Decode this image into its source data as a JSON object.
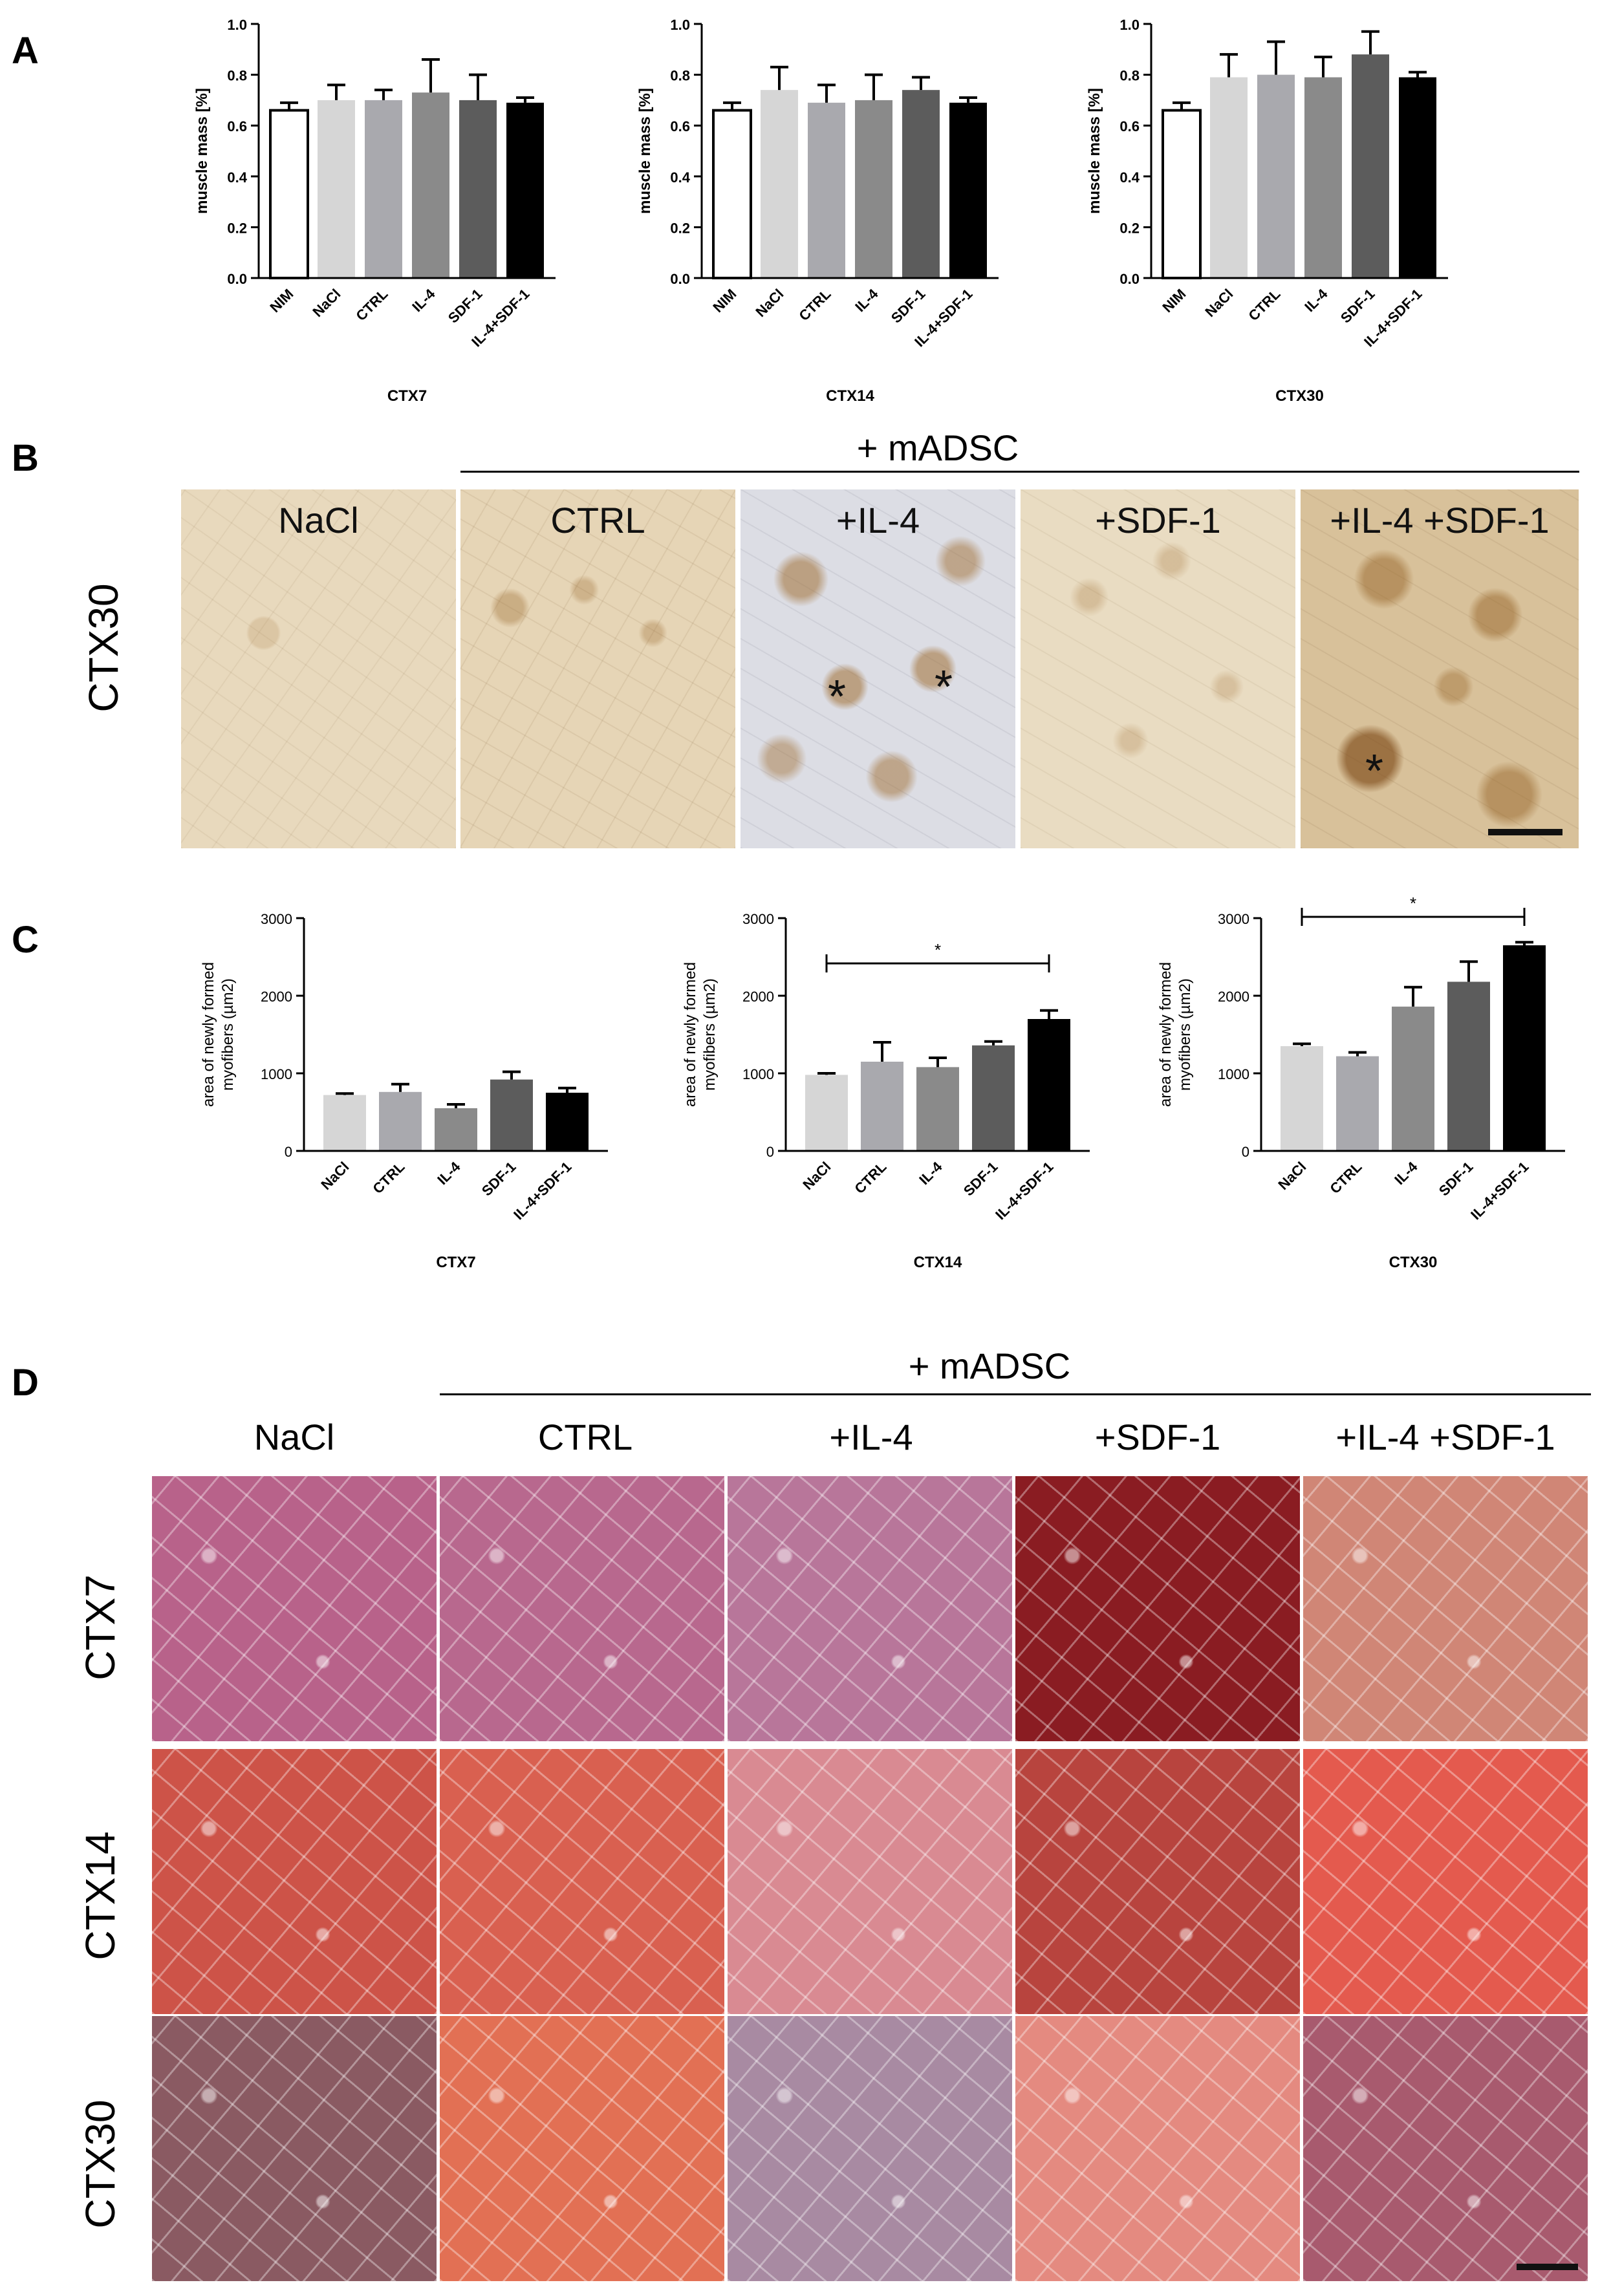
{
  "panel_labels": {
    "a": "A",
    "b": "B",
    "c": "C",
    "d": "D"
  },
  "panelA": {
    "ylabel": "muscle mass [%]",
    "ticks": [
      "1.0",
      "0.8",
      "0.6",
      "0.4",
      "0.2",
      "0.0"
    ],
    "categories": [
      "NIM",
      "NaCl",
      "CTRL",
      "IL-4",
      "SDF-1",
      "IL-4+SDF-1"
    ]
  },
  "panelB": {
    "madsc_title": "+ mADSC",
    "row_label": "CTX30",
    "images": [
      "NaCl",
      "CTRL",
      "+IL-4",
      "+SDF-1",
      "+IL-4 +SDF-1"
    ],
    "asterisk": "*"
  },
  "panelC": {
    "ylabel_line1": "area of newly formed",
    "ylabel_line2": "myofibers (µm2)",
    "ticks": [
      "3000",
      "2000",
      "1000",
      "0"
    ],
    "categories": [
      "NaCl",
      "CTRL",
      "IL-4",
      "SDF-1",
      "IL-4+SDF-1"
    ],
    "sig": "*"
  },
  "panelD": {
    "madsc_title": "+ mADSC",
    "columns": [
      "NaCl",
      "CTRL",
      "+IL-4",
      "+SDF-1",
      "+IL-4 +SDF-1"
    ],
    "rows": [
      "CTX7",
      "CTX14",
      "CTX30"
    ]
  },
  "colors": {
    "NIM": "#ffffff",
    "NaCl": "#d6d6d6",
    "CTRL": "#a9a9ae",
    "IL-4": "#8a8a8a",
    "SDF-1": "#5c5c5c",
    "IL-4+SDF-1": "#000000",
    "he_ctx7": [
      "#b8628a",
      "#b8688e",
      "#b8769a",
      "#8a1c22",
      "#d08676"
    ],
    "he_ctx14": [
      "#cd5348",
      "#d96050",
      "#d98a92",
      "#b8443e",
      "#e45a4e"
    ],
    "he_ctx30": [
      "#8a5a62",
      "#e27054",
      "#a88aa2",
      "#e48a80",
      "#a85a6e"
    ]
  },
  "chart_data": [
    {
      "type": "bar",
      "xlabel": "CTX7",
      "ylabel": "muscle mass [%]",
      "ylim": [
        0,
        1.0
      ],
      "categories": [
        "NIM",
        "NaCl",
        "CTRL",
        "IL-4",
        "SDF-1",
        "IL-4+SDF-1"
      ],
      "values": [
        0.66,
        0.7,
        0.7,
        0.73,
        0.7,
        0.69
      ],
      "errors": [
        0.03,
        0.06,
        0.04,
        0.13,
        0.1,
        0.02
      ]
    },
    {
      "type": "bar",
      "xlabel": "CTX14",
      "ylabel": "muscle mass [%]",
      "ylim": [
        0,
        1.0
      ],
      "categories": [
        "NIM",
        "NaCl",
        "CTRL",
        "IL-4",
        "SDF-1",
        "IL-4+SDF-1"
      ],
      "values": [
        0.66,
        0.74,
        0.69,
        0.7,
        0.74,
        0.69
      ],
      "errors": [
        0.03,
        0.09,
        0.07,
        0.1,
        0.05,
        0.02
      ]
    },
    {
      "type": "bar",
      "xlabel": "CTX30",
      "ylabel": "muscle mass [%]",
      "ylim": [
        0,
        1.0
      ],
      "categories": [
        "NIM",
        "NaCl",
        "CTRL",
        "IL-4",
        "SDF-1",
        "IL-4+SDF-1"
      ],
      "values": [
        0.66,
        0.79,
        0.8,
        0.79,
        0.88,
        0.79
      ],
      "errors": [
        0.03,
        0.09,
        0.13,
        0.08,
        0.09,
        0.02
      ]
    },
    {
      "type": "bar",
      "xlabel": "CTX7",
      "ylabel": "area of newly formed myofibers (µm2)",
      "ylim": [
        0,
        3000
      ],
      "categories": [
        "NaCl",
        "CTRL",
        "IL-4",
        "SDF-1",
        "IL-4+SDF-1"
      ],
      "values": [
        720,
        760,
        550,
        920,
        750
      ],
      "errors": [
        20,
        100,
        50,
        100,
        60
      ]
    },
    {
      "type": "bar",
      "xlabel": "CTX14",
      "ylabel": "area of newly formed myofibers (µm2)",
      "ylim": [
        0,
        3000
      ],
      "categories": [
        "NaCl",
        "CTRL",
        "IL-4",
        "SDF-1",
        "IL-4+SDF-1"
      ],
      "values": [
        980,
        1150,
        1080,
        1360,
        1700
      ],
      "errors": [
        20,
        250,
        120,
        50,
        110
      ],
      "significance": {
        "from": "NaCl",
        "to": "IL-4+SDF-1",
        "label": "*"
      }
    },
    {
      "type": "bar",
      "xlabel": "CTX30",
      "ylabel": "area of newly formed myofibers (µm2)",
      "ylim": [
        0,
        3000
      ],
      "categories": [
        "NaCl",
        "CTRL",
        "IL-4",
        "SDF-1",
        "IL-4+SDF-1"
      ],
      "values": [
        1350,
        1220,
        1860,
        2180,
        2650
      ],
      "errors": [
        30,
        50,
        250,
        260,
        40
      ],
      "significance": {
        "from": "NaCl",
        "to": "IL-4+SDF-1",
        "label": "*"
      }
    }
  ]
}
